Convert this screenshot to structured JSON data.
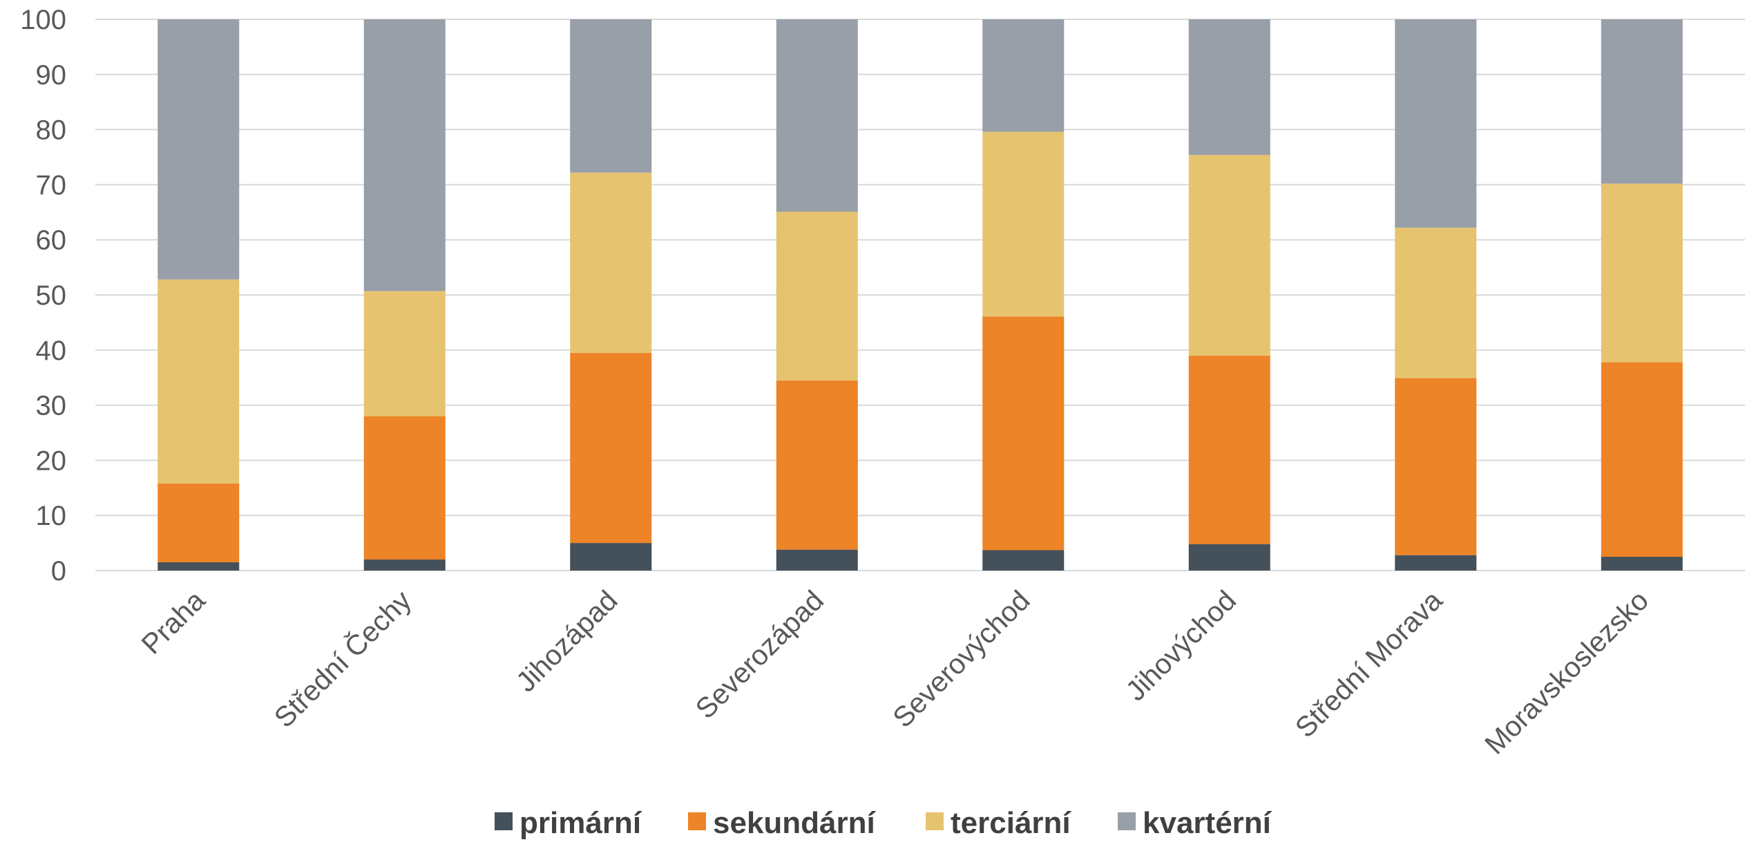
{
  "chart_data": {
    "type": "bar",
    "stacked": true,
    "categories": [
      "Praha",
      "Střední Čechy",
      "Jihozápad",
      "Severozápad",
      "Severovýchod",
      "Jihovýchod",
      "Střední Morava",
      "Moravskoslezsko"
    ],
    "series": [
      {
        "name": "primární",
        "color": "#44505a",
        "values": [
          1.5,
          2.0,
          5.0,
          3.8,
          3.7,
          4.8,
          2.8,
          2.5
        ]
      },
      {
        "name": "sekundární",
        "color": "#ed8427",
        "values": [
          14.3,
          26.0,
          34.5,
          30.7,
          42.4,
          34.2,
          32.1,
          35.3
        ]
      },
      {
        "name": "terciární",
        "color": "#e6c46f",
        "values": [
          37.0,
          22.7,
          32.7,
          30.6,
          33.5,
          36.4,
          27.3,
          32.4
        ]
      },
      {
        "name": "kvartérní",
        "color": "#989fa8",
        "values": [
          47.2,
          49.3,
          27.8,
          34.9,
          20.4,
          24.6,
          37.8,
          29.8
        ]
      }
    ],
    "yticks": [
      0,
      10,
      20,
      30,
      40,
      50,
      60,
      70,
      80,
      90,
      100
    ],
    "ylim": [
      0,
      100
    ],
    "grid": true,
    "gridColor": "#d9d9d9",
    "legend": "bottom",
    "title": "",
    "xlabel": "",
    "ylabel": ""
  }
}
